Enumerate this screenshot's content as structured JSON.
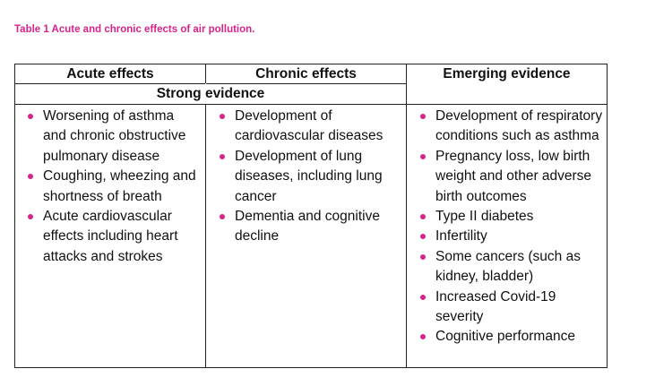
{
  "caption": "Table 1 Acute and chronic effects of air pollution.",
  "table": {
    "headers": [
      "Acute effects",
      "Chronic effects",
      "Emerging evidence"
    ],
    "subheader": "Strong evidence",
    "acute": [
      "Worsening of asthma and chronic obstructive pulmonary disease",
      "Coughing, wheezing and shortness of breath",
      "Acute cardiovascular effects including heart attacks and strokes"
    ],
    "chronic": [
      "Development of cardiovascular diseases",
      "Development of lung diseases, including lung cancer",
      "Dementia and cognitive decline"
    ],
    "emerging": [
      "Development of respiratory conditions such as asthma",
      "Pregnancy loss, low birth weight and other adverse birth outcomes",
      "Type II diabetes",
      "Infertility",
      "Some cancers (such as kidney, bladder)",
      "Increased Covid-19 severity",
      "Cognitive performance"
    ]
  },
  "colors": {
    "accent": "#d6248a"
  }
}
